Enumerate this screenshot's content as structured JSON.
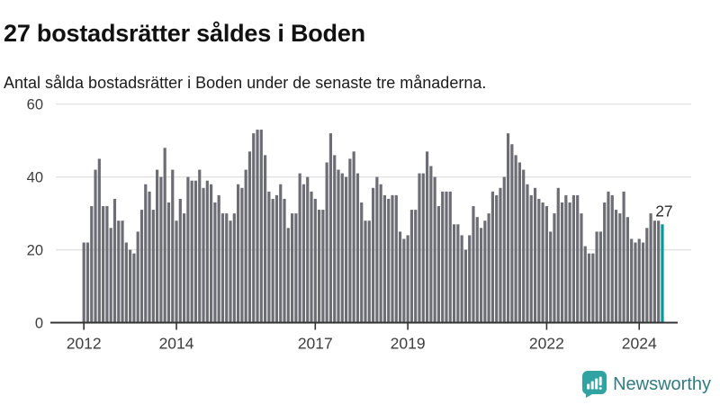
{
  "header": {
    "title": "27 bostadsrätter såldes i Boden",
    "subtitle": "Antal sålda bostadsrätter i Boden under de senaste tre månaderna."
  },
  "chart_data": {
    "type": "bar",
    "title": "27 bostadsrätter såldes i Boden",
    "subtitle": "Antal sålda bostadsrätter i Boden under de senaste tre månaderna.",
    "unit": "sålda bostadsrätter (rullande 3 månader)",
    "x_start": "2012-01",
    "x_frequency": "monthly",
    "values": [
      22,
      22,
      32,
      42,
      45,
      32,
      32,
      26,
      34,
      28,
      28,
      22,
      20,
      19,
      25,
      31,
      38,
      36,
      31,
      42,
      40,
      48,
      33,
      42,
      28,
      34,
      30,
      40,
      39,
      39,
      42,
      37,
      39,
      38,
      33,
      35,
      30,
      30,
      28,
      30,
      38,
      37,
      42,
      47,
      52,
      53,
      53,
      46,
      36,
      34,
      35,
      38,
      34,
      26,
      30,
      30,
      41,
      38,
      40,
      36,
      34,
      31,
      31,
      44,
      52,
      46,
      42,
      41,
      40,
      45,
      47,
      41,
      33,
      28,
      28,
      37,
      40,
      38,
      35,
      34,
      35,
      35,
      25,
      23,
      24,
      31,
      31,
      41,
      41,
      47,
      43,
      40,
      32,
      36,
      36,
      36,
      27,
      27,
      24,
      20,
      24,
      32,
      29,
      26,
      28,
      30,
      36,
      35,
      37,
      40,
      52,
      49,
      46,
      44,
      42,
      38,
      35,
      37,
      34,
      33,
      32,
      25,
      30,
      37,
      33,
      35,
      33,
      35,
      35,
      30,
      21,
      19,
      19,
      25,
      25,
      33,
      36,
      35,
      31,
      30,
      36,
      29,
      23,
      22,
      23,
      22,
      26,
      30,
      28,
      28,
      27
    ],
    "highlight": {
      "index": 150,
      "value": 27,
      "label": "27"
    },
    "y_ticks": [
      0,
      20,
      40,
      60
    ],
    "ylim": [
      0,
      60
    ],
    "x_ticks": [
      {
        "label": "2012",
        "month_index": 0
      },
      {
        "label": "2014",
        "month_index": 24
      },
      {
        "label": "2017",
        "month_index": 60
      },
      {
        "label": "2019",
        "month_index": 84
      },
      {
        "label": "2022",
        "month_index": 120
      },
      {
        "label": "2024",
        "month_index": 144
      }
    ],
    "grid": true,
    "legend": null,
    "colors": {
      "bar": "#6d6d75",
      "highlight": "#009b9b",
      "axis": "#333333",
      "grid": "#e0e0e0",
      "tick_label": "#3d3d3d",
      "annotation": "#2b2b2b"
    }
  },
  "footer": {
    "brand": "Newsworthy",
    "logo_icon": "speech-bubble-bar-chart-icon",
    "brand_text_color": "#2f7d80",
    "icon_color": "#31a3a3"
  }
}
